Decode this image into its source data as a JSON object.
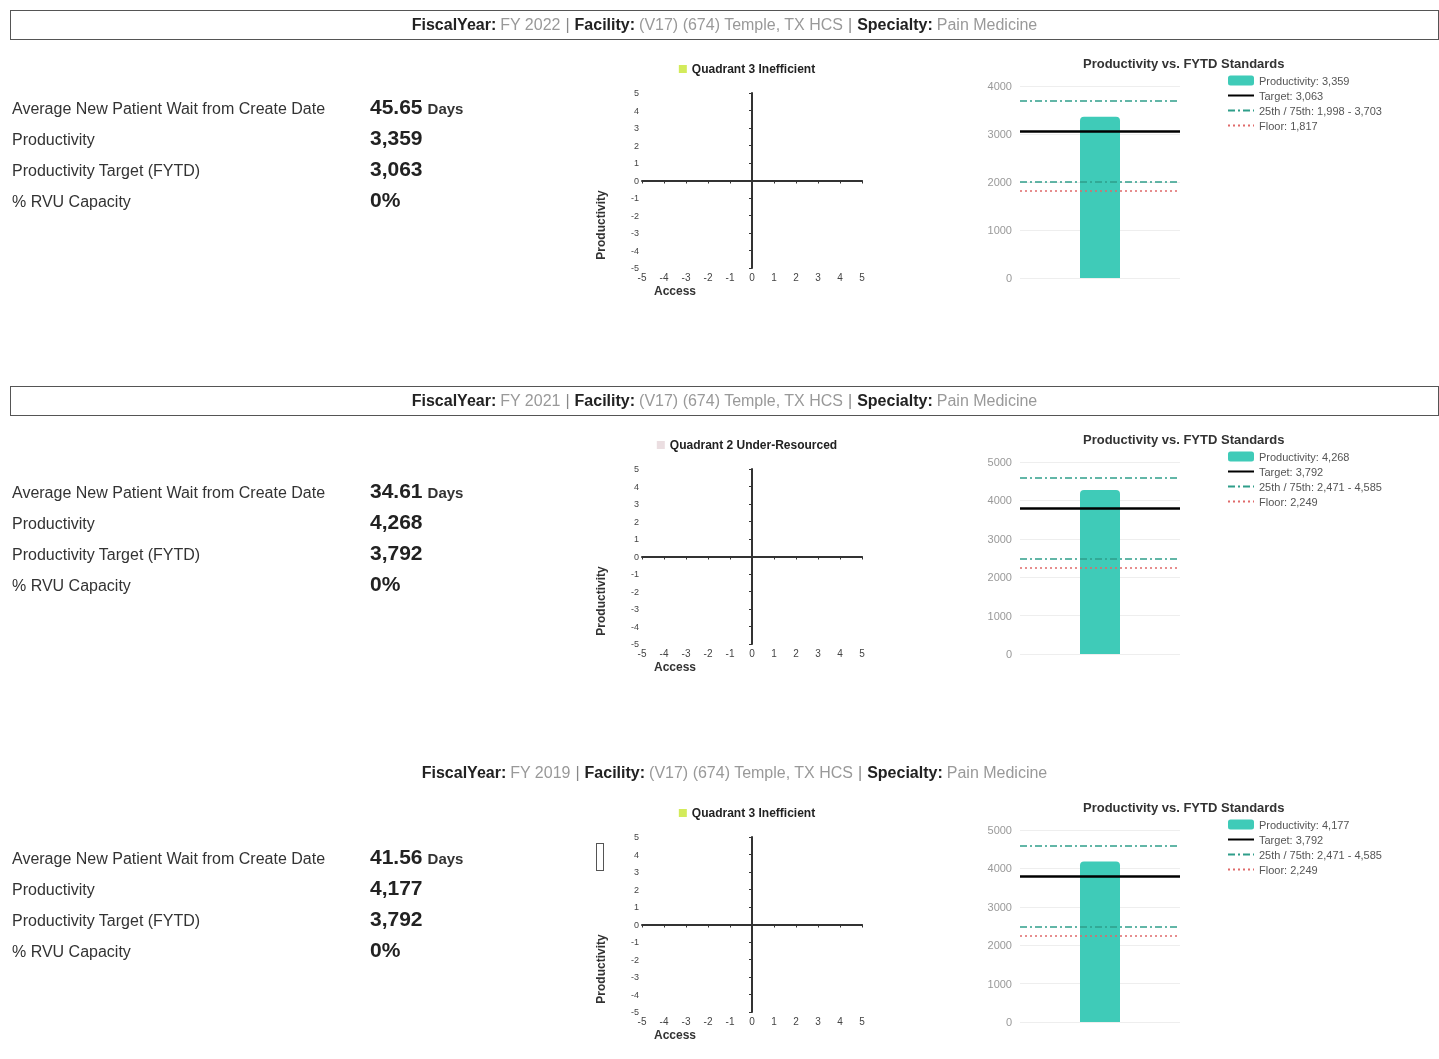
{
  "chart_data": [
    {
      "type": "other",
      "title": "FiscalYear: FY 2022 | Facility: (V17) (674) Temple, TX HCS | Specialty: Pain Medicine",
      "annotations": [
        "Average New Patient Wait from Create Date",
        "45.65 Days",
        "Productivity",
        "3,359",
        "Productivity Target (FYTD)",
        "3,063",
        "% RVU Capacity",
        "0%"
      ]
    },
    {
      "type": "scatter",
      "xlabel": "Access",
      "ylabel": "Productivity",
      "xlim": [
        -5,
        5
      ],
      "ylim": [
        -5,
        5
      ],
      "xticks": [
        -5,
        -4,
        -3,
        -2,
        -1,
        0,
        1,
        2,
        3,
        4,
        5
      ],
      "yticks": [
        -5,
        -4,
        -3,
        -2,
        -1,
        0,
        1,
        2,
        3,
        4,
        5
      ],
      "legend": "top",
      "series": [
        {
          "name": "Quadrant 3 Inefficient",
          "color": "#c8e632",
          "x": [
            null
          ],
          "values": [
            null
          ]
        }
      ]
    },
    {
      "type": "bar",
      "title": "Productivity vs. FYTD Standards",
      "categories": [
        null
      ],
      "ylim": [
        0,
        4000
      ],
      "yticks": [
        0,
        1000,
        2000,
        3000,
        4000
      ],
      "grid": "y",
      "legend": "right",
      "series": [
        {
          "name": "Productivity: 3,359",
          "color": "#3fcbb8",
          "values": [
            3359
          ]
        }
      ],
      "ref_lines": [
        {
          "axis": "y",
          "value": 3063,
          "label": "Target: 3,063",
          "color": "#000000",
          "line_style": "solid"
        },
        {
          "axis": "y",
          "value": 1998,
          "label": "25th / 75th: 1,998 - 3,703",
          "color": "#2f9e8a",
          "line_style": "dashed"
        },
        {
          "axis": "y",
          "value": 3703,
          "label": null,
          "color": "#2f9e8a",
          "line_style": "dashed"
        },
        {
          "axis": "y",
          "value": 1817,
          "label": "Floor: 1,817",
          "color": "#e06a6a",
          "line_style": "dotted"
        }
      ]
    },
    {
      "type": "other",
      "title": "FiscalYear: FY 2021 | Facility: (V17) (674) Temple, TX HCS | Specialty: Pain Medicine",
      "annotations": [
        "Average New Patient Wait from Create Date",
        "34.61 Days",
        "Productivity",
        "4,268",
        "Productivity Target (FYTD)",
        "3,792",
        "% RVU Capacity",
        "0%"
      ]
    },
    {
      "type": "scatter",
      "xlabel": "Access",
      "ylabel": "Productivity",
      "xlim": [
        -5,
        5
      ],
      "ylim": [
        -5,
        5
      ],
      "xticks": [
        -5,
        -4,
        -3,
        -2,
        -1,
        0,
        1,
        2,
        3,
        4,
        5
      ],
      "yticks": [
        -5,
        -4,
        -3,
        -2,
        -1,
        0,
        1,
        2,
        3,
        4,
        5
      ],
      "legend": "top",
      "series": [
        {
          "name": "Quadrant 2 Under-Resourced",
          "color": "#e6d6da",
          "x": [
            null
          ],
          "values": [
            null
          ]
        }
      ]
    },
    {
      "type": "bar",
      "title": "Productivity vs. FYTD Standards",
      "categories": [
        null
      ],
      "ylim": [
        0,
        5000
      ],
      "yticks": [
        0,
        1000,
        2000,
        3000,
        4000,
        5000
      ],
      "grid": "y",
      "legend": "right",
      "series": [
        {
          "name": "Productivity: 4,268",
          "color": "#3fcbb8",
          "values": [
            4268
          ]
        }
      ],
      "ref_lines": [
        {
          "axis": "y",
          "value": 3792,
          "label": "Target: 3,792",
          "color": "#000000",
          "line_style": "solid"
        },
        {
          "axis": "y",
          "value": 2471,
          "label": "25th / 75th: 2,471 - 4,585",
          "color": "#2f9e8a",
          "line_style": "dashed"
        },
        {
          "axis": "y",
          "value": 4585,
          "label": null,
          "color": "#2f9e8a",
          "line_style": "dashed"
        },
        {
          "axis": "y",
          "value": 2249,
          "label": "Floor: 2,249",
          "color": "#e06a6a",
          "line_style": "dotted"
        }
      ]
    },
    {
      "type": "other",
      "title": "FiscalYear: FY 2019 | Facility: (V17) (674) Temple, TX HCS | Specialty: Pain Medicine",
      "annotations": [
        "Average New Patient Wait from Create Date",
        "41.56 Days",
        "Productivity",
        "4,177",
        "Productivity Target (FYTD)",
        "3,792",
        "% RVU Capacity",
        "0%"
      ]
    },
    {
      "type": "scatter",
      "xlabel": "Access",
      "ylabel": "Productivity",
      "xlim": [
        -5,
        5
      ],
      "ylim": [
        -5,
        5
      ],
      "xticks": [
        -5,
        -4,
        -3,
        -2,
        -1,
        0,
        1,
        2,
        3,
        4,
        5
      ],
      "yticks": [
        -5,
        -4,
        -3,
        -2,
        -1,
        0,
        1,
        2,
        3,
        4,
        5
      ],
      "legend": "top",
      "series": [
        {
          "name": "Quadrant 3 Inefficient",
          "color": "#c8e632",
          "x": [
            null
          ],
          "values": [
            null
          ]
        }
      ]
    },
    {
      "type": "bar",
      "title": "Productivity vs. FYTD Standards",
      "categories": [
        null
      ],
      "ylim": [
        0,
        5000
      ],
      "yticks": [
        0,
        1000,
        2000,
        3000,
        4000,
        5000
      ],
      "grid": "y",
      "legend": "right",
      "series": [
        {
          "name": "Productivity: 4,177",
          "color": "#3fcbb8",
          "values": [
            4177
          ]
        }
      ],
      "ref_lines": [
        {
          "axis": "y",
          "value": 3792,
          "label": "Target: 3,792",
          "color": "#000000",
          "line_style": "solid"
        },
        {
          "axis": "y",
          "value": 2471,
          "label": "25th / 75th: 2,471 - 4,585",
          "color": "#2f9e8a",
          "line_style": "dashed"
        },
        {
          "axis": "y",
          "value": 4585,
          "label": null,
          "color": "#2f9e8a",
          "line_style": "dashed"
        },
        {
          "axis": "y",
          "value": 2249,
          "label": "Floor: 2,249",
          "color": "#e06a6a",
          "line_style": "dotted"
        }
      ]
    }
  ]
}
